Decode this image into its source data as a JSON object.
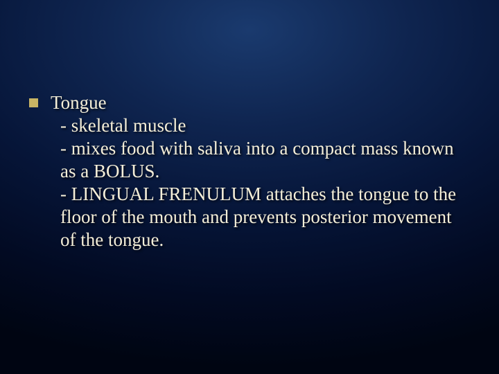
{
  "slide": {
    "background": {
      "gradient_center": "#1a3a6e",
      "gradient_mid1": "#0f2550",
      "gradient_mid2": "#061538",
      "gradient_outer": "#020a22",
      "gradient_edge": "#000512"
    },
    "bullet": {
      "marker_color": "#c9b464",
      "text_color": "#f4eed8",
      "font_family": "Times New Roman",
      "font_size_pt": 20,
      "title": "Tongue",
      "lines": {
        "l1": " - skeletal muscle",
        "l2": " - mixes food with saliva into a compact mass known as a BOLUS.",
        "l3": " - LINGUAL FRENULUM attaches the tongue to the floor of the mouth and prevents posterior movement of the tongue."
      }
    }
  }
}
